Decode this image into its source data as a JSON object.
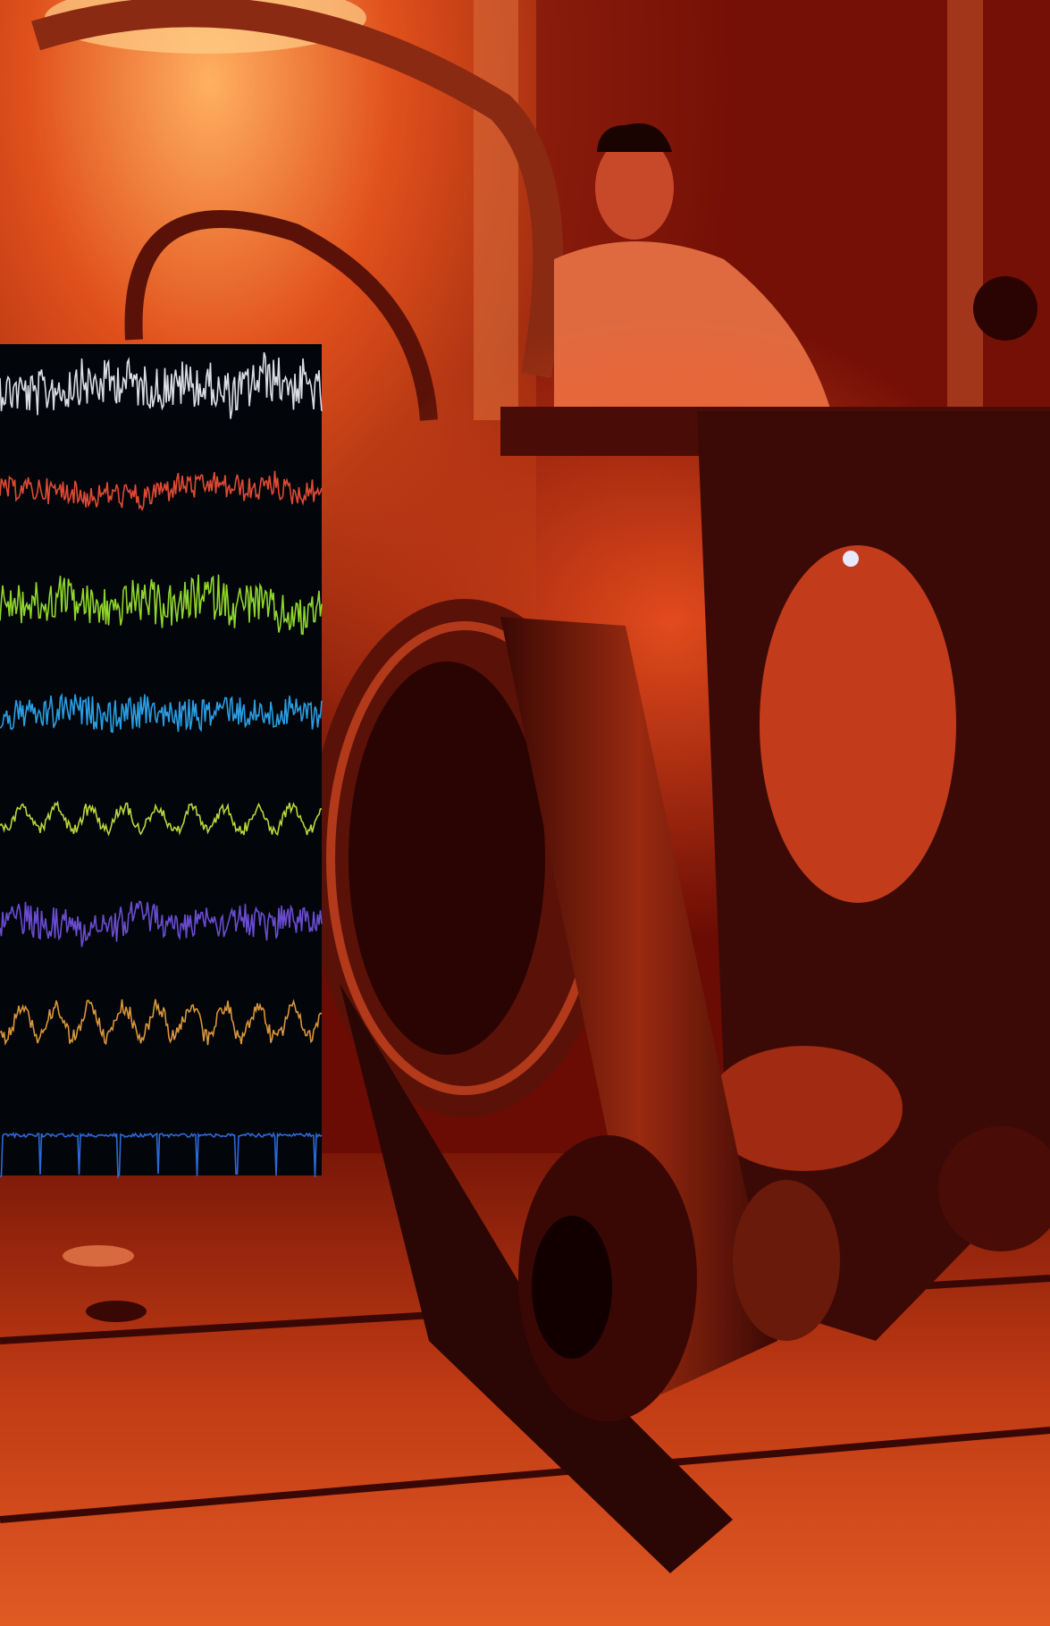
{
  "traces": [
    {
      "color": "#dcdce6"
    },
    {
      "color": "#e04a34"
    },
    {
      "color": "#8fd62c"
    },
    {
      "color": "#2a9ee2"
    },
    {
      "color": "#bcd43c"
    },
    {
      "color": "#6a4cd0"
    },
    {
      "color": "#d8963c"
    },
    {
      "color": "#2a6ad8"
    }
  ]
}
